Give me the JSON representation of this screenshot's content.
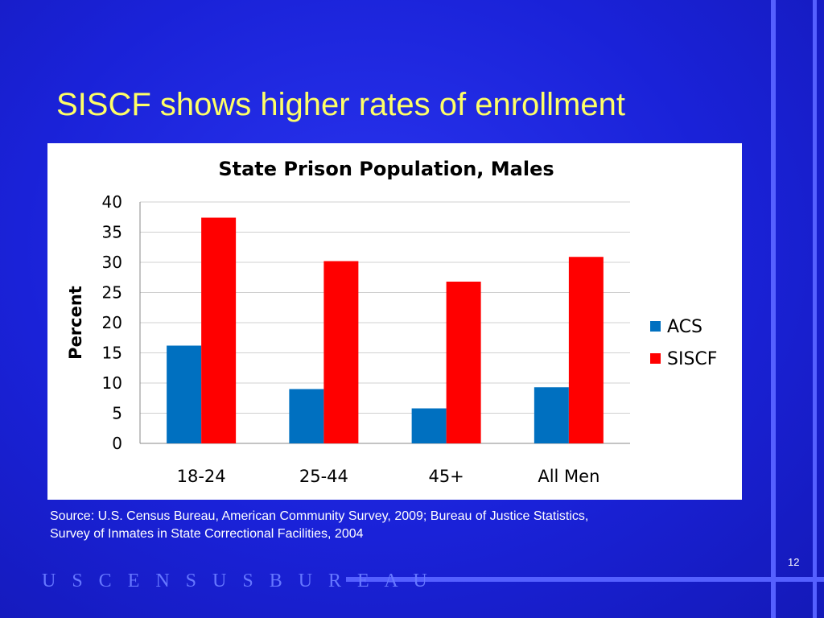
{
  "slide": {
    "title": "SISCF shows higher rates of enrollment",
    "source_line1": "Source: U.S. Census Bureau, American Community Survey, 2009; Bureau of Justice Statistics,",
    "source_line2": "Survey of Inmates in State Correctional Facilities, 2004",
    "slide_number": "12",
    "footer_brand": "U S C E N S U S B U R E A U"
  },
  "chart_data": {
    "type": "bar",
    "title": "State Prison Population, Males",
    "xlabel": "",
    "ylabel": "Percent",
    "categories": [
      "18-24",
      "25-44",
      "45+",
      "All Men"
    ],
    "series": [
      {
        "name": "ACS",
        "color": "#0070c0",
        "values": [
          16.2,
          9.0,
          5.8,
          9.3
        ]
      },
      {
        "name": "SISCF",
        "color": "#ff0000",
        "values": [
          37.4,
          30.2,
          26.8,
          30.9
        ]
      }
    ],
    "ylim": [
      0,
      40
    ],
    "yticks": [
      "0",
      "5",
      "10",
      "15",
      "20",
      "25",
      "30",
      "35",
      "40"
    ],
    "grid": true,
    "legend_position": "right"
  }
}
